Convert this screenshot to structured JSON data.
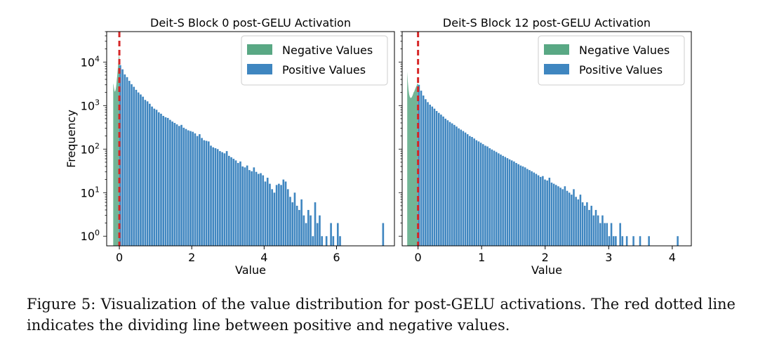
{
  "colors": {
    "negative": "#59a884",
    "positive": "#3f86c0",
    "divider": "#d62728",
    "axis": "#000000"
  },
  "caption": {
    "label": "Figure 5:",
    "text": "Visualization of the value distribution for post-GELU activations. The red dotted line indicates the dividing line between positive and negative values."
  },
  "chart_data": [
    {
      "type": "bar",
      "title": "Deit-S Block 0 post-GELU Activation",
      "xlabel": "Value",
      "ylabel": "Frequency",
      "yscale": "log",
      "xlim": [
        -0.35,
        7.6
      ],
      "ylim": [
        0.6,
        50000
      ],
      "xticks": [
        0,
        2,
        4,
        6
      ],
      "yticks": [
        1,
        10,
        100,
        1000,
        10000
      ],
      "ytick_labels": [
        "10^0",
        "10^1",
        "10^2",
        "10^3",
        "10^4"
      ],
      "divider_x": 0,
      "legend_position": "top-right",
      "legend": [
        "Negative Values",
        "Positive Values"
      ],
      "bar_width": 0.0626,
      "negative": {
        "x": [
          -0.17,
          -0.16,
          -0.15,
          -0.14,
          -0.13,
          -0.12,
          -0.11,
          -0.1,
          -0.09,
          -0.08,
          -0.07,
          -0.06,
          -0.05,
          -0.04,
          -0.03,
          -0.02,
          -0.01
        ],
        "values": [
          3200,
          3000,
          2600,
          2300,
          2100,
          2100,
          2200,
          2400,
          2700,
          3200,
          3900,
          4800,
          6000,
          7500,
          9500,
          12000,
          14000
        ]
      },
      "positive": {
        "x_start": 0,
        "values": [
          8500,
          6800,
          5200,
          4500,
          3700,
          3100,
          2700,
          2300,
          2000,
          1800,
          1600,
          1350,
          1250,
          1100,
          950,
          850,
          800,
          700,
          650,
          580,
          540,
          520,
          470,
          430,
          400,
          370,
          340,
          360,
          310,
          290,
          270,
          260,
          250,
          230,
          200,
          220,
          180,
          160,
          155,
          150,
          120,
          110,
          105,
          100,
          90,
          85,
          80,
          90,
          70,
          65,
          60,
          55,
          48,
          52,
          40,
          38,
          42,
          33,
          31,
          38,
          30,
          27,
          28,
          25,
          18,
          22,
          16,
          12,
          10,
          15,
          16,
          15,
          20,
          18,
          12,
          8,
          6,
          10,
          5,
          4,
          7,
          3,
          2,
          4,
          3,
          1,
          6,
          2,
          3,
          1,
          0,
          1,
          0,
          2,
          1,
          0,
          2,
          1,
          0,
          0,
          0,
          0,
          0,
          0,
          0,
          0,
          0,
          0,
          0,
          0,
          0,
          0,
          0,
          0,
          0,
          0,
          2
        ]
      }
    },
    {
      "type": "bar",
      "title": "Deit-S Block 12 post-GELU Activation",
      "xlabel": "Value",
      "ylabel": "",
      "yscale": "log",
      "xlim": [
        -0.25,
        4.3
      ],
      "ylim": [
        0.6,
        50000
      ],
      "xticks": [
        0,
        1,
        2,
        3,
        4
      ],
      "yticks": [
        1,
        10,
        100,
        1000,
        10000
      ],
      "ytick_labels": [
        "",
        "",
        "",
        "",
        ""
      ],
      "divider_x": 0,
      "legend_position": "top-right",
      "legend": [
        "Negative Values",
        "Positive Values"
      ],
      "bar_width": 0.0348,
      "negative": {
        "x": [
          -0.17,
          -0.16,
          -0.15,
          -0.14,
          -0.13,
          -0.12,
          -0.11,
          -0.1,
          -0.09,
          -0.08,
          -0.07,
          -0.06,
          -0.05,
          -0.04,
          -0.03,
          -0.02,
          -0.01
        ],
        "values": [
          6000,
          3500,
          2300,
          1800,
          1600,
          1500,
          1500,
          1550,
          1650,
          1800,
          2000,
          2100,
          2300,
          2500,
          2700,
          2900,
          3200
        ]
      },
      "positive": {
        "x_start": 0,
        "values": [
          3000,
          2200,
          1700,
          1400,
          1200,
          1050,
          950,
          850,
          750,
          680,
          620,
          560,
          500,
          460,
          420,
          390,
          360,
          330,
          300,
          280,
          260,
          240,
          220,
          200,
          190,
          175,
          160,
          150,
          140,
          130,
          120,
          115,
          105,
          98,
          92,
          86,
          80,
          75,
          70,
          66,
          62,
          58,
          55,
          52,
          48,
          45,
          42,
          40,
          38,
          35,
          33,
          31,
          29,
          27,
          25,
          23,
          24,
          20,
          19,
          22,
          17,
          16,
          15,
          14,
          13,
          12,
          14,
          11,
          10,
          9,
          12,
          8,
          7,
          9,
          6,
          5,
          6,
          4,
          5,
          3,
          4,
          3,
          2,
          3,
          2,
          2,
          1,
          2,
          1,
          1,
          0,
          2,
          1,
          0,
          1,
          0,
          0,
          1,
          0,
          0,
          1,
          0,
          0,
          0,
          1,
          0,
          0,
          0,
          0,
          0,
          0,
          0,
          0,
          0,
          0,
          0,
          0,
          1
        ]
      }
    }
  ]
}
